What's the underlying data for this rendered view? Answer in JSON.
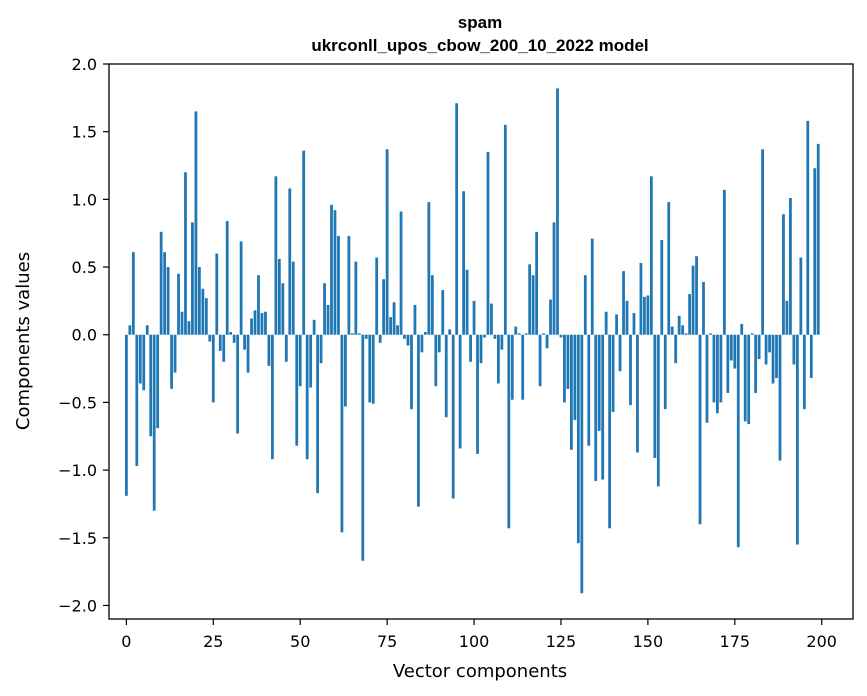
{
  "chart_data": {
    "type": "bar",
    "title": "spam",
    "subtitle": "ukrconll_upos_cbow_200_10_2022 model",
    "xlabel": "Vector components",
    "ylabel": "Components values",
    "xlim": [
      -5,
      209
    ],
    "ylim": [
      -2.1,
      2.0
    ],
    "xticks": [
      0,
      25,
      50,
      75,
      100,
      125,
      150,
      175,
      200
    ],
    "xtick_labels": [
      "0",
      "25",
      "50",
      "75",
      "100",
      "125",
      "150",
      "175",
      "200"
    ],
    "yticks": [
      2.0,
      1.5,
      1.0,
      0.5,
      0.0,
      -0.5,
      -1.0,
      -1.5,
      -2.0
    ],
    "ytick_labels": [
      "2.0",
      "1.5",
      "1.0",
      "0.5",
      "0.0",
      "−0.5",
      "−1.0",
      "−1.5",
      "−2.0"
    ],
    "grid": false,
    "bar_color": "#1f77b4",
    "x": [
      0,
      1,
      2,
      3,
      4,
      5,
      6,
      7,
      8,
      9,
      10,
      11,
      12,
      13,
      14,
      15,
      16,
      17,
      18,
      19,
      20,
      21,
      22,
      23,
      24,
      25,
      26,
      27,
      28,
      29,
      30,
      31,
      32,
      33,
      34,
      35,
      36,
      37,
      38,
      39,
      40,
      41,
      42,
      43,
      44,
      45,
      46,
      47,
      48,
      49,
      50,
      51,
      52,
      53,
      54,
      55,
      56,
      57,
      58,
      59,
      60,
      61,
      62,
      63,
      64,
      65,
      66,
      67,
      68,
      69,
      70,
      71,
      72,
      73,
      74,
      75,
      76,
      77,
      78,
      79,
      80,
      81,
      82,
      83,
      84,
      85,
      86,
      87,
      88,
      89,
      90,
      91,
      92,
      93,
      94,
      95,
      96,
      97,
      98,
      99,
      100,
      101,
      102,
      103,
      104,
      105,
      106,
      107,
      108,
      109,
      110,
      111,
      112,
      113,
      114,
      115,
      116,
      117,
      118,
      119,
      120,
      121,
      122,
      123,
      124,
      125,
      126,
      127,
      128,
      129,
      130,
      131,
      132,
      133,
      134,
      135,
      136,
      137,
      138,
      139,
      140,
      141,
      142,
      143,
      144,
      145,
      146,
      147,
      148,
      149,
      150,
      151,
      152,
      153,
      154,
      155,
      156,
      157,
      158,
      159,
      160,
      161,
      162,
      163,
      164,
      165,
      166,
      167,
      168,
      169,
      170,
      171,
      172,
      173,
      174,
      175,
      176,
      177,
      178,
      179,
      180,
      181,
      182,
      183,
      184,
      185,
      186,
      187,
      188,
      189,
      190,
      191,
      192,
      193,
      194,
      195,
      196,
      197,
      198,
      199
    ],
    "values": [
      -1.19,
      0.07,
      0.61,
      -0.97,
      -0.36,
      -0.41,
      0.07,
      -0.75,
      -1.3,
      -0.69,
      0.76,
      0.61,
      0.5,
      -0.4,
      -0.28,
      0.45,
      0.17,
      1.2,
      0.1,
      0.83,
      1.65,
      0.5,
      0.34,
      0.27,
      -0.05,
      -0.5,
      0.6,
      -0.12,
      -0.2,
      0.84,
      0.02,
      -0.06,
      -0.73,
      0.69,
      -0.11,
      -0.28,
      0.12,
      0.18,
      0.44,
      0.16,
      0.17,
      -0.23,
      -0.92,
      1.17,
      0.56,
      0.38,
      -0.2,
      1.08,
      0.54,
      -0.82,
      -0.38,
      1.36,
      -0.92,
      -0.39,
      0.11,
      -1.17,
      -0.21,
      0.38,
      0.22,
      0.96,
      0.92,
      0.73,
      -1.46,
      -0.53,
      0.73,
      0.01,
      0.54,
      0.01,
      -1.67,
      -0.03,
      -0.5,
      -0.51,
      0.57,
      -0.06,
      0.41,
      1.37,
      0.13,
      0.24,
      0.07,
      0.91,
      -0.03,
      -0.08,
      -0.55,
      0.22,
      -1.27,
      -0.13,
      0.02,
      0.98,
      0.44,
      -0.38,
      -0.13,
      0.33,
      -0.61,
      0.04,
      -1.21,
      1.71,
      -0.84,
      1.06,
      0.48,
      -0.2,
      0.25,
      -0.88,
      -0.21,
      -0.02,
      1.35,
      0.23,
      -0.03,
      -0.36,
      -0.11,
      1.55,
      -1.43,
      -0.48,
      0.06,
      0.01,
      -0.48,
      0.01,
      0.52,
      0.44,
      0.76,
      -0.38,
      0.01,
      -0.1,
      0.26,
      0.83,
      1.82,
      -0.02,
      -0.5,
      -0.4,
      -0.85,
      -0.63,
      -1.54,
      -1.91,
      0.44,
      -0.82,
      0.71,
      -1.08,
      -0.71,
      -1.07,
      0.17,
      -1.43,
      -0.57,
      0.15,
      -0.27,
      0.47,
      0.25,
      -0.52,
      0.16,
      -0.87,
      0.53,
      0.28,
      0.29,
      1.17,
      -0.91,
      -1.12,
      0.7,
      -0.55,
      0.98,
      0.06,
      -0.21,
      0.14,
      0.07,
      0.01,
      0.3,
      0.51,
      0.58,
      -1.4,
      0.39,
      -0.65,
      0.01,
      -0.5,
      -0.58,
      -0.5,
      1.07,
      -0.43,
      -0.19,
      -0.25,
      -1.57,
      0.08,
      -0.64,
      -0.66,
      0.01,
      -0.43,
      -0.18,
      1.37,
      -0.22,
      -0.13,
      -0.36,
      -0.32,
      -0.93,
      0.89,
      0.25,
      1.01,
      -0.22,
      -1.55,
      0.57,
      -0.55,
      1.58,
      -0.32,
      1.23,
      1.41
    ]
  }
}
